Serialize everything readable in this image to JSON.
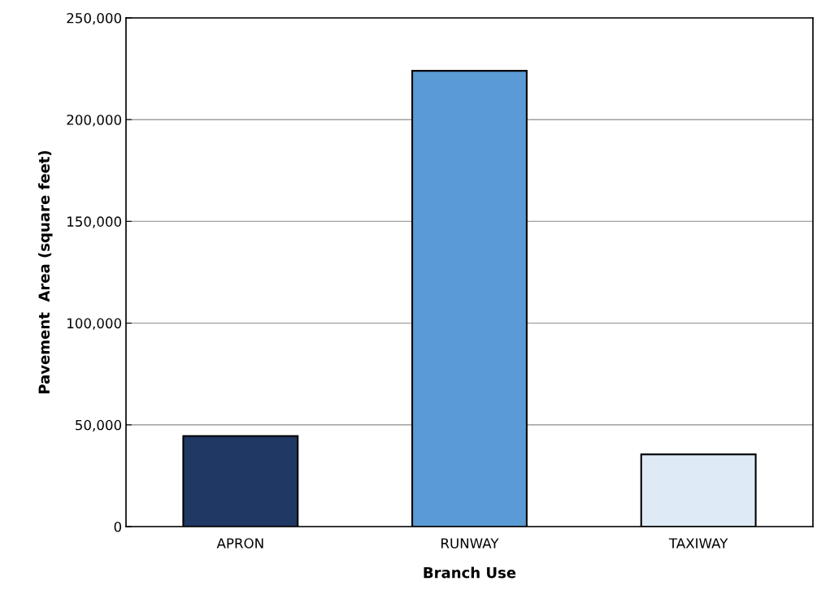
{
  "chart_data": {
    "type": "bar",
    "xlabel": "Branch Use",
    "ylabel": "Pavement  Area (square feet)",
    "categories": [
      "APRON",
      "RUNWAY",
      "TAXIWAY"
    ],
    "values": [
      44500,
      224000,
      35500
    ],
    "colors": [
      "#203864",
      "#5b9bd5",
      "#deebf7"
    ],
    "ylim": [
      0,
      250000
    ],
    "yticks": [
      {
        "value": 0,
        "label": "0"
      },
      {
        "value": 50000,
        "label": "50,000"
      },
      {
        "value": 100000,
        "label": "100,000"
      },
      {
        "value": 150000,
        "label": "150,000"
      },
      {
        "value": 200000,
        "label": "200,000"
      },
      {
        "value": 250000,
        "label": "250,000"
      }
    ],
    "grid": "y"
  }
}
